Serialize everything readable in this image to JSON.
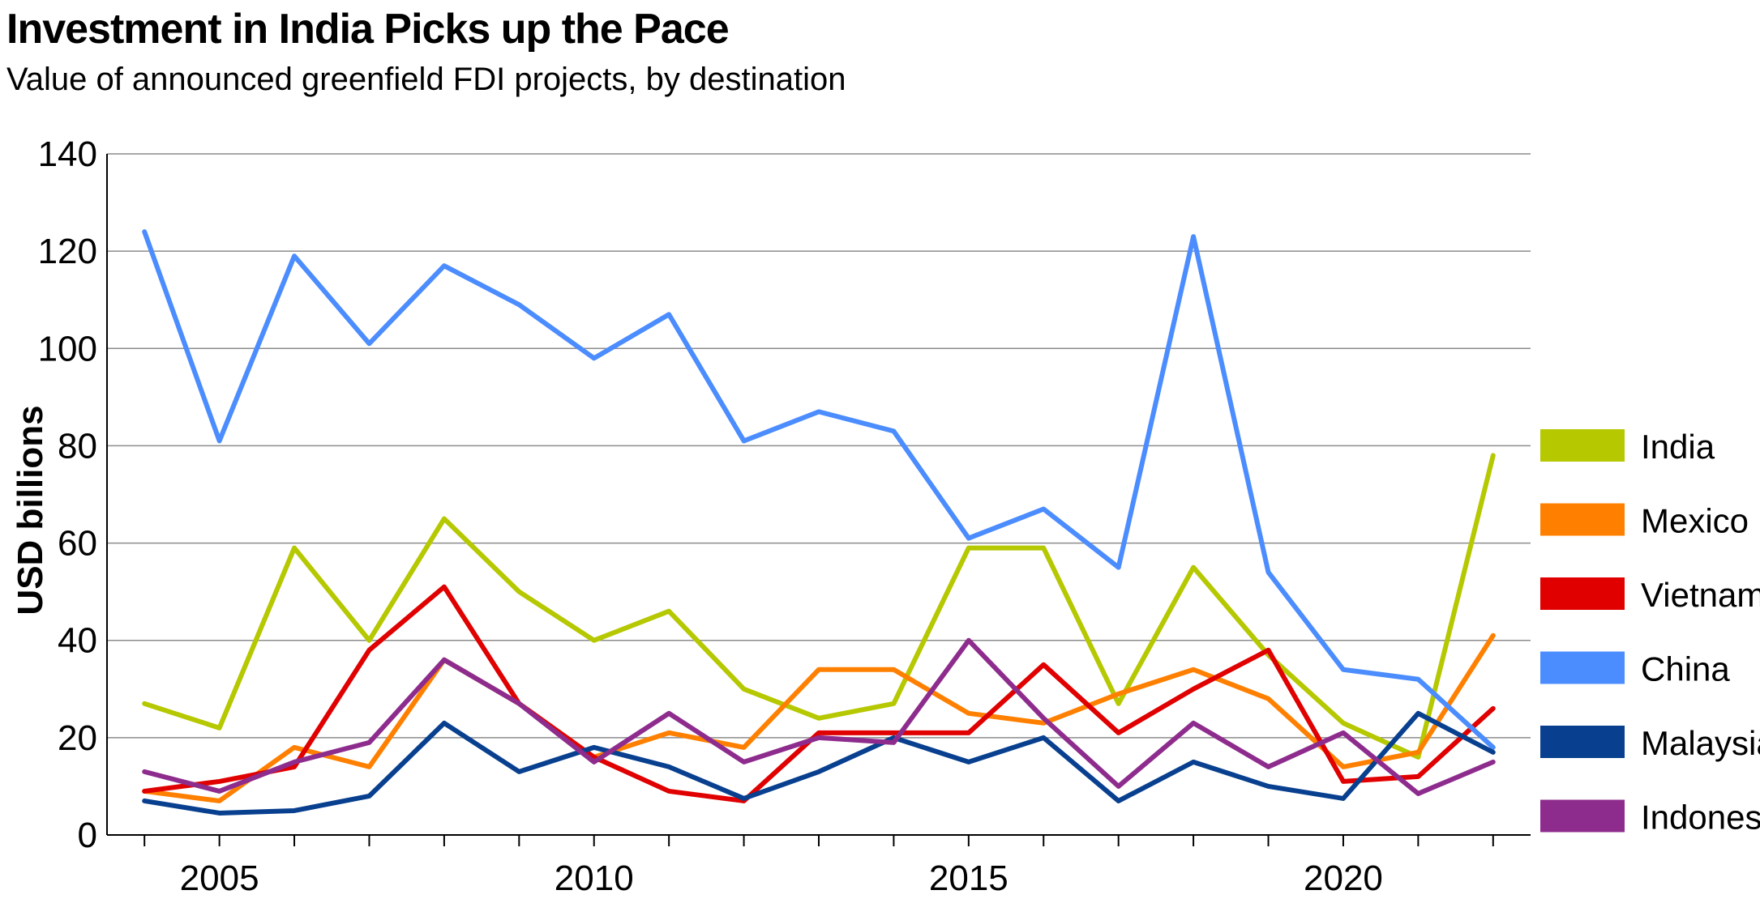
{
  "chart_data": {
    "type": "line",
    "title": "Investment in India Picks up the Pace",
    "subtitle": "Value of announced greenfield FDI projects, by destination",
    "xlabel": "",
    "ylabel": "USD billions",
    "xlim": [
      2003.5,
      2022.5
    ],
    "ylim": [
      0,
      140
    ],
    "yticks": [
      0,
      20,
      40,
      60,
      80,
      100,
      120,
      140
    ],
    "xticks": [
      2005,
      2010,
      2015,
      2020
    ],
    "grid": "horizontal",
    "legend": "right",
    "x": [
      2004,
      2005,
      2006,
      2007,
      2008,
      2009,
      2010,
      2011,
      2012,
      2013,
      2014,
      2015,
      2016,
      2017,
      2018,
      2019,
      2020,
      2021,
      2022
    ],
    "series": [
      {
        "name": "India",
        "color": "#b5c800",
        "values": [
          27,
          22,
          59,
          40,
          65,
          50,
          40,
          46,
          30,
          24,
          27,
          59,
          59,
          27,
          55,
          37,
          23,
          16,
          78
        ]
      },
      {
        "name": "Mexico",
        "color": "#ff8000",
        "values": [
          9,
          7,
          18,
          14,
          36,
          27,
          16,
          21,
          18,
          34,
          34,
          25,
          23,
          29,
          34,
          28,
          14,
          17,
          41
        ]
      },
      {
        "name": "Vietnam",
        "color": "#e00000",
        "values": [
          9,
          11,
          14,
          38,
          51,
          27,
          16,
          9,
          7,
          21,
          21,
          21,
          35,
          21,
          30,
          38,
          11,
          12,
          26
        ]
      },
      {
        "name": "China",
        "color": "#4b8cff",
        "values": [
          124,
          81,
          119,
          101,
          117,
          109,
          98,
          107,
          81,
          87,
          83,
          61,
          67,
          55,
          123,
          54,
          34,
          32,
          18
        ]
      },
      {
        "name": "Malaysia",
        "color": "#08408f",
        "values": [
          7,
          4.5,
          5,
          8,
          23,
          13,
          18,
          14,
          7.5,
          13,
          20,
          15,
          20,
          7,
          15,
          10,
          7.5,
          25,
          17
        ]
      },
      {
        "name": "Indonesia",
        "color": "#8e2c8e",
        "values": [
          13,
          9,
          15,
          19,
          36,
          27,
          15,
          25,
          15,
          20,
          19,
          40,
          24,
          10,
          23,
          14,
          21,
          8.5,
          15
        ]
      }
    ]
  }
}
